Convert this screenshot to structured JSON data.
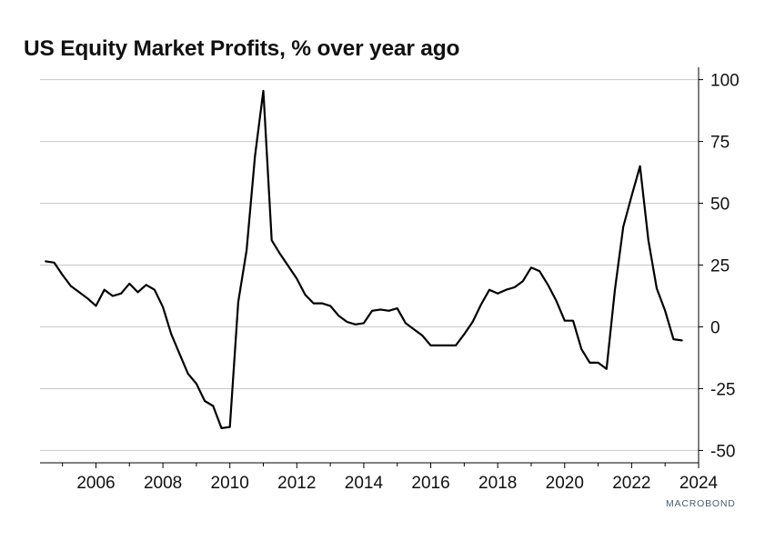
{
  "chart_data": {
    "type": "line",
    "title": "US Equity Market Profits, % over year ago",
    "xlabel": "",
    "ylabel": "",
    "xlim": [
      2004.33,
      2024.0
    ],
    "ylim": [
      -55,
      105
    ],
    "x_ticks": [
      2006,
      2008,
      2010,
      2012,
      2014,
      2016,
      2018,
      2020,
      2022,
      2024
    ],
    "x_tick_labels": [
      "2006",
      "2008",
      "2010",
      "2012",
      "2014",
      "2016",
      "2018",
      "2020",
      "2022",
      "2024"
    ],
    "y_ticks": [
      100,
      75,
      50,
      25,
      0,
      -25,
      -50
    ],
    "y_tick_labels": [
      "100",
      "75",
      "50",
      "25",
      "0",
      "-25",
      "-50"
    ],
    "grid": "horizontal",
    "y_axis_side": "right",
    "legend": "none",
    "series": [
      {
        "color": "#000000",
        "points": [
          [
            2004.5,
            26.5
          ],
          [
            2004.75,
            26
          ],
          [
            2005.0,
            21
          ],
          [
            2005.25,
            16.5
          ],
          [
            2005.5,
            14
          ],
          [
            2005.75,
            11.5
          ],
          [
            2006.0,
            8.5
          ],
          [
            2006.25,
            15
          ],
          [
            2006.5,
            12.5
          ],
          [
            2006.75,
            13.5
          ],
          [
            2007.0,
            17.5
          ],
          [
            2007.25,
            14
          ],
          [
            2007.5,
            17
          ],
          [
            2007.75,
            15
          ],
          [
            2008.0,
            8
          ],
          [
            2008.25,
            -3
          ],
          [
            2008.5,
            -11
          ],
          [
            2008.75,
            -19
          ],
          [
            2009.0,
            -23
          ],
          [
            2009.25,
            -30
          ],
          [
            2009.5,
            -32
          ],
          [
            2009.75,
            -41
          ],
          [
            2010.0,
            -40.5
          ],
          [
            2010.25,
            10
          ],
          [
            2010.5,
            31
          ],
          [
            2010.75,
            69
          ],
          [
            2011.0,
            95.5
          ],
          [
            2011.25,
            35
          ],
          [
            2011.5,
            29.5
          ],
          [
            2011.75,
            24.5
          ],
          [
            2012.0,
            19.5
          ],
          [
            2012.25,
            13
          ],
          [
            2012.5,
            9.5
          ],
          [
            2012.75,
            9.5
          ],
          [
            2013.0,
            8.5
          ],
          [
            2013.25,
            4.5
          ],
          [
            2013.5,
            2
          ],
          [
            2013.75,
            1
          ],
          [
            2014.0,
            1.5
          ],
          [
            2014.25,
            6.5
          ],
          [
            2014.5,
            7
          ],
          [
            2014.75,
            6.5
          ],
          [
            2015.0,
            7.5
          ],
          [
            2015.25,
            1.5
          ],
          [
            2015.5,
            -1
          ],
          [
            2015.75,
            -3.5
          ],
          [
            2016.0,
            -7.5
          ],
          [
            2016.25,
            -7.5
          ],
          [
            2016.5,
            -7.5
          ],
          [
            2016.75,
            -7.5
          ],
          [
            2017.0,
            -3
          ],
          [
            2017.25,
            2
          ],
          [
            2017.5,
            9
          ],
          [
            2017.75,
            15
          ],
          [
            2018.0,
            13.5
          ],
          [
            2018.25,
            15
          ],
          [
            2018.5,
            16
          ],
          [
            2018.75,
            18.5
          ],
          [
            2019.0,
            24
          ],
          [
            2019.25,
            22.5
          ],
          [
            2019.5,
            17
          ],
          [
            2019.75,
            10.5
          ],
          [
            2020.0,
            2.5
          ],
          [
            2020.25,
            2.5
          ],
          [
            2020.5,
            -9
          ],
          [
            2020.75,
            -14.5
          ],
          [
            2021.0,
            -14.5
          ],
          [
            2021.25,
            -17
          ],
          [
            2021.5,
            15
          ],
          [
            2021.75,
            40.5
          ],
          [
            2022.0,
            53
          ],
          [
            2022.25,
            65
          ],
          [
            2022.5,
            35
          ],
          [
            2022.75,
            15.5
          ],
          [
            2023.0,
            6.5
          ],
          [
            2023.25,
            -5
          ],
          [
            2023.5,
            -5.5
          ]
        ]
      }
    ]
  },
  "watermark": "MACROBOND"
}
